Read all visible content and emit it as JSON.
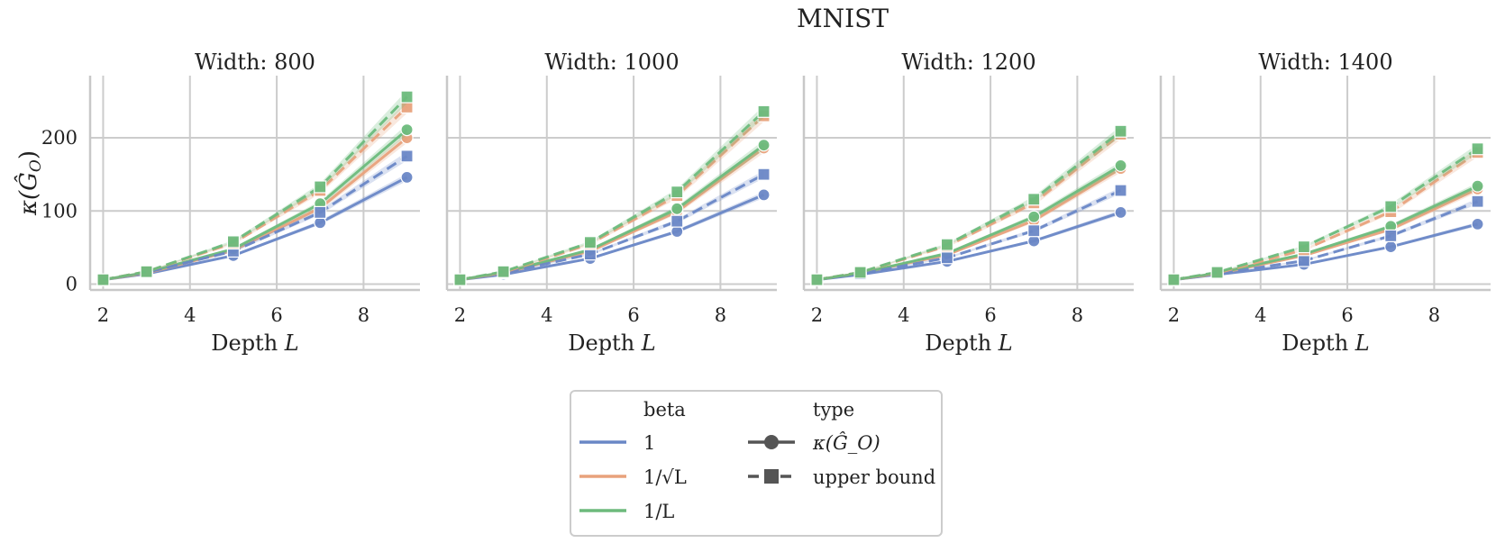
{
  "suptitle": "MNIST",
  "chart_data": {
    "type": "line",
    "title": "MNIST",
    "xlabel": "Depth L",
    "ylabel": "κ(Ĝ_O)",
    "xlim": [
      1.7,
      9.3
    ],
    "ylim": [
      -8,
      285
    ],
    "xticks": [
      2,
      4,
      6,
      8
    ],
    "yticks": [
      0,
      100,
      200
    ],
    "grid": true,
    "x": [
      2,
      3,
      5,
      7,
      9
    ],
    "legend": {
      "beta_title": "beta",
      "type_title": "type",
      "beta_entries": [
        {
          "label": "1",
          "color": "#6a87c6"
        },
        {
          "label": "1/√L",
          "color": "#e8a27c"
        },
        {
          "label": "1/L",
          "color": "#6dba7c"
        }
      ],
      "type_entries": [
        {
          "label": "κ(Ĝ_O)",
          "marker": "circle",
          "dash": "solid"
        },
        {
          "label": "upper bound",
          "marker": "square",
          "dash": "dashed"
        }
      ],
      "placement": "bottom-center"
    },
    "panels": [
      {
        "title": "Width: 800",
        "series": [
          {
            "beta": "1",
            "type": "kappa",
            "values": [
              6,
              14,
              39,
              84,
              146
            ]
          },
          {
            "beta": "1/√L",
            "type": "kappa",
            "values": [
              6,
              15,
              46,
              104,
              200
            ]
          },
          {
            "beta": "1/L",
            "type": "kappa",
            "values": [
              6,
              16,
              48,
              110,
              211
            ]
          },
          {
            "beta": "1",
            "type": "upper bound",
            "values": [
              6,
              16,
              45,
              98,
              175
            ]
          },
          {
            "beta": "1/√L",
            "type": "upper bound",
            "values": [
              6,
              17,
              56,
              128,
              242
            ]
          },
          {
            "beta": "1/L",
            "type": "upper bound",
            "values": [
              6,
              17,
              58,
              133,
              256
            ]
          }
        ]
      },
      {
        "title": "Width: 1000",
        "series": [
          {
            "beta": "1",
            "type": "kappa",
            "values": [
              6,
              13,
              35,
              72,
              122
            ]
          },
          {
            "beta": "1/√L",
            "type": "kappa",
            "values": [
              6,
              15,
              45,
              99,
              186
            ]
          },
          {
            "beta": "1/L",
            "type": "kappa",
            "values": [
              6,
              16,
              47,
              103,
              190
            ]
          },
          {
            "beta": "1",
            "type": "upper bound",
            "values": [
              6,
              15,
              41,
              86,
              150
            ]
          },
          {
            "beta": "1/√L",
            "type": "upper bound",
            "values": [
              6,
              16,
              55,
              121,
              230
            ]
          },
          {
            "beta": "1/L",
            "type": "upper bound",
            "values": [
              6,
              17,
              57,
              126,
              236
            ]
          }
        ]
      },
      {
        "title": "Width: 1200",
        "series": [
          {
            "beta": "1",
            "type": "kappa",
            "values": [
              6,
              13,
              31,
              59,
              98
            ]
          },
          {
            "beta": "1/√L",
            "type": "kappa",
            "values": [
              6,
              15,
              40,
              87,
              158
            ]
          },
          {
            "beta": "1/L",
            "type": "kappa",
            "values": [
              6,
              15,
              42,
              92,
              162
            ]
          },
          {
            "beta": "1",
            "type": "upper bound",
            "values": [
              6,
              14,
              36,
              73,
              128
            ]
          },
          {
            "beta": "1/√L",
            "type": "upper bound",
            "values": [
              6,
              16,
              52,
              111,
              205
            ]
          },
          {
            "beta": "1/L",
            "type": "upper bound",
            "values": [
              6,
              16,
              54,
              116,
              209
            ]
          }
        ]
      },
      {
        "title": "Width: 1400",
        "series": [
          {
            "beta": "1",
            "type": "kappa",
            "values": [
              6,
              13,
              27,
              51,
              82
            ]
          },
          {
            "beta": "1/√L",
            "type": "kappa",
            "values": [
              6,
              14,
              39,
              75,
              130
            ]
          },
          {
            "beta": "1/L",
            "type": "kappa",
            "values": [
              6,
              15,
              41,
              79,
              134
            ]
          },
          {
            "beta": "1",
            "type": "upper bound",
            "values": [
              6,
              14,
              32,
              66,
              113
            ]
          },
          {
            "beta": "1/√L",
            "type": "upper bound",
            "values": [
              6,
              15,
              47,
              99,
              180
            ]
          },
          {
            "beta": "1/L",
            "type": "upper bound",
            "values": [
              6,
              16,
              51,
              106,
              185
            ]
          }
        ]
      }
    ]
  }
}
